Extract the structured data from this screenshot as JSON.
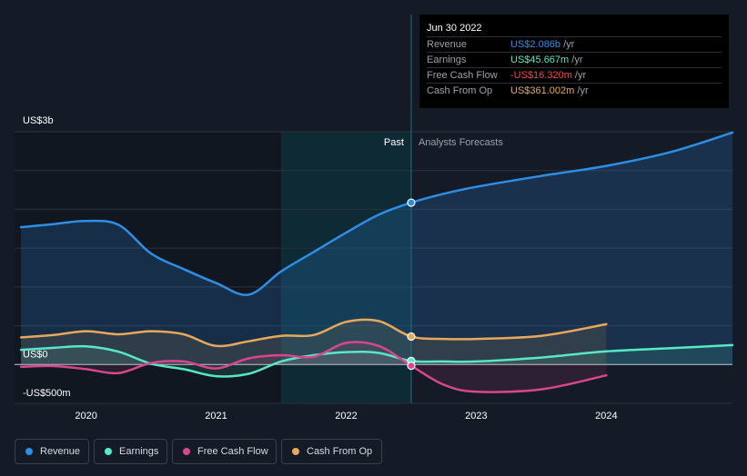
{
  "chart_data": {
    "type": "line",
    "title": "",
    "x_range": [
      2019.45,
      2024.97
    ],
    "ylim": [
      -500,
      3000
    ],
    "y_ticks": [
      {
        "value": 3000,
        "label": "US$3b"
      },
      {
        "value": 0,
        "label": "US$0"
      },
      {
        "value": -500,
        "label": "-US$500m"
      }
    ],
    "x_ticks": [
      {
        "value": 2020,
        "label": "2020"
      },
      {
        "value": 2021,
        "label": "2021"
      },
      {
        "value": 2022,
        "label": "2022"
      },
      {
        "value": 2023,
        "label": "2023"
      },
      {
        "value": 2024,
        "label": "2024"
      }
    ],
    "divider_x": 2022.5,
    "highlight_start_x": 2021.5,
    "past_label": "Past",
    "forecast_label": "Analysts Forecasts",
    "series": [
      {
        "name": "Revenue",
        "color": "#2e8ee6",
        "fill": true,
        "points": [
          [
            2019.5,
            1770
          ],
          [
            2019.75,
            1810
          ],
          [
            2020,
            1850
          ],
          [
            2020.25,
            1800
          ],
          [
            2020.5,
            1430
          ],
          [
            2020.75,
            1230
          ],
          [
            2021,
            1050
          ],
          [
            2021.25,
            900
          ],
          [
            2021.5,
            1200
          ],
          [
            2021.75,
            1450
          ],
          [
            2022,
            1700
          ],
          [
            2022.25,
            1930
          ],
          [
            2022.5,
            2086
          ],
          [
            2022.75,
            2200
          ],
          [
            2023,
            2290
          ],
          [
            2023.5,
            2430
          ],
          [
            2024,
            2560
          ],
          [
            2024.5,
            2740
          ],
          [
            2024.97,
            2990
          ]
        ]
      },
      {
        "name": "Earnings",
        "color": "#57e8c6",
        "fill": true,
        "points": [
          [
            2019.5,
            190
          ],
          [
            2019.75,
            215
          ],
          [
            2020,
            235
          ],
          [
            2020.25,
            165
          ],
          [
            2020.5,
            10
          ],
          [
            2020.75,
            -60
          ],
          [
            2021,
            -150
          ],
          [
            2021.25,
            -120
          ],
          [
            2021.5,
            40
          ],
          [
            2021.75,
            120
          ],
          [
            2022,
            160
          ],
          [
            2022.25,
            150
          ],
          [
            2022.5,
            46
          ],
          [
            2022.75,
            40
          ],
          [
            2023,
            40
          ],
          [
            2023.5,
            90
          ],
          [
            2024,
            170
          ],
          [
            2024.5,
            210
          ],
          [
            2024.97,
            250
          ]
        ]
      },
      {
        "name": "Free Cash Flow",
        "color": "#d8468d",
        "fill": true,
        "points": [
          [
            2019.5,
            -30
          ],
          [
            2019.75,
            -20
          ],
          [
            2020,
            -60
          ],
          [
            2020.25,
            -110
          ],
          [
            2020.5,
            20
          ],
          [
            2020.75,
            40
          ],
          [
            2021,
            -50
          ],
          [
            2021.25,
            80
          ],
          [
            2021.5,
            120
          ],
          [
            2021.75,
            100
          ],
          [
            2022,
            280
          ],
          [
            2022.25,
            240
          ],
          [
            2022.5,
            -16
          ],
          [
            2022.75,
            -260
          ],
          [
            2023,
            -350
          ],
          [
            2023.5,
            -320
          ],
          [
            2024,
            -140
          ]
        ]
      },
      {
        "name": "Cash From Op",
        "color": "#e8a85c",
        "fill": true,
        "points": [
          [
            2019.5,
            350
          ],
          [
            2019.75,
            380
          ],
          [
            2020,
            430
          ],
          [
            2020.25,
            390
          ],
          [
            2020.5,
            430
          ],
          [
            2020.75,
            390
          ],
          [
            2021,
            240
          ],
          [
            2021.25,
            300
          ],
          [
            2021.5,
            370
          ],
          [
            2021.75,
            380
          ],
          [
            2022,
            550
          ],
          [
            2022.25,
            560
          ],
          [
            2022.5,
            361
          ],
          [
            2022.75,
            330
          ],
          [
            2023,
            330
          ],
          [
            2023.5,
            370
          ],
          [
            2024,
            520
          ]
        ]
      }
    ],
    "highlight_points": [
      {
        "series": "Revenue",
        "x": 2022.5,
        "y": 2086
      },
      {
        "series": "Cash From Op",
        "x": 2022.5,
        "y": 361
      },
      {
        "series": "Earnings",
        "x": 2022.5,
        "y": 46
      },
      {
        "series": "Free Cash Flow",
        "x": 2022.5,
        "y": -16
      }
    ]
  },
  "tooltip": {
    "date": "Jun 30 2022",
    "rows": [
      {
        "label": "Revenue",
        "value": "US$2.086b",
        "unit": " /yr",
        "color": "#2e8ee6"
      },
      {
        "label": "Earnings",
        "value": "US$45.667m",
        "unit": " /yr",
        "color": "#57e8c6"
      },
      {
        "label": "Free Cash Flow",
        "value": "-US$16.320m",
        "unit": " /yr",
        "color": "#f04a4a"
      },
      {
        "label": "Cash From Op",
        "value": "US$361.002m",
        "unit": " /yr",
        "color": "#e8a85c"
      }
    ]
  },
  "legend": [
    {
      "label": "Revenue",
      "color": "#2e8ee6"
    },
    {
      "label": "Earnings",
      "color": "#57e8c6"
    },
    {
      "label": "Free Cash Flow",
      "color": "#d8468d"
    },
    {
      "label": "Cash From Op",
      "color": "#e8a85c"
    }
  ]
}
